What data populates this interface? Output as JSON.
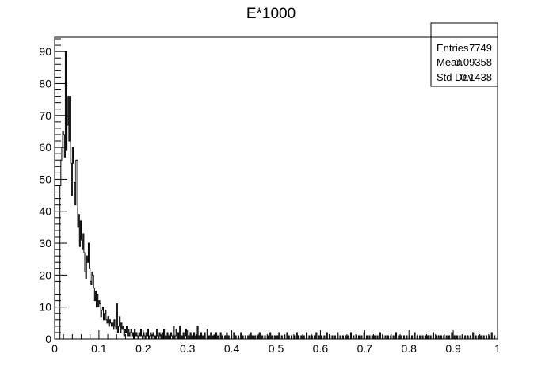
{
  "chart_data": {
    "type": "bar",
    "title": "E*1000",
    "xlabel": "",
    "ylabel": "",
    "xlim": [
      0,
      1
    ],
    "ylim": [
      0,
      94.5
    ],
    "x_ticks": [
      "0",
      "0.1",
      "0.2",
      "0.3",
      "0.4",
      "0.5",
      "0.6",
      "0.7",
      "0.8",
      "0.9",
      "1"
    ],
    "y_ticks": [
      "0",
      "10",
      "20",
      "30",
      "40",
      "50",
      "60",
      "70",
      "80",
      "90"
    ],
    "bin_width": 0.002,
    "values": [
      0,
      0,
      0,
      0,
      0,
      0,
      48,
      56,
      60,
      65,
      64,
      57,
      90,
      59,
      67,
      76,
      62,
      76,
      55,
      45,
      60,
      55,
      49,
      42,
      56,
      56,
      35,
      39,
      29,
      37,
      31,
      28,
      33,
      27,
      21,
      19,
      26,
      24,
      30,
      22,
      18,
      17,
      21,
      20,
      16,
      12,
      15,
      10,
      14,
      10,
      12,
      11,
      7,
      9,
      10,
      6,
      8,
      9,
      6,
      5,
      7,
      4,
      6,
      5,
      4,
      5,
      3,
      6,
      4,
      3,
      11,
      2,
      4,
      7,
      2,
      5,
      3,
      4,
      1,
      3,
      2,
      4,
      1,
      3,
      1,
      2,
      3,
      1,
      2,
      0,
      3,
      1,
      2,
      1,
      0,
      2,
      1,
      3,
      1,
      0,
      2,
      1,
      0,
      2,
      1,
      3,
      0,
      1,
      2,
      0,
      1,
      2,
      0,
      1,
      0,
      3,
      1,
      0,
      2,
      1,
      0,
      2,
      0,
      3,
      0,
      1,
      0,
      2,
      0,
      1,
      0,
      2,
      1,
      0,
      4,
      0,
      1,
      3,
      0,
      2,
      0,
      4,
      0,
      1,
      0,
      2,
      0,
      1,
      3,
      0,
      0,
      1,
      0,
      2,
      0,
      1,
      0,
      2,
      0,
      1,
      0,
      4,
      0,
      1,
      0,
      2,
      0,
      1,
      0,
      2,
      0,
      0,
      3,
      0,
      1,
      0,
      2,
      0,
      1,
      0,
      1,
      0,
      2,
      0,
      1,
      0,
      0,
      2,
      0,
      1,
      0,
      0,
      1,
      0,
      2,
      0,
      1,
      0,
      0,
      1,
      0,
      0,
      2,
      0,
      1,
      0,
      0,
      1,
      0,
      0,
      2,
      0,
      1,
      0,
      0,
      1,
      0,
      0,
      1,
      0,
      0,
      2,
      0,
      1,
      0,
      0,
      1,
      0,
      0,
      1,
      0,
      2,
      0,
      0,
      1,
      0,
      0,
      1,
      0,
      0,
      1,
      0,
      0,
      2,
      0,
      1,
      0,
      0,
      1,
      0,
      0,
      1,
      0,
      2,
      0,
      0,
      1,
      0,
      0,
      1,
      0,
      0,
      2,
      0,
      1,
      0,
      0,
      1,
      0,
      0,
      1,
      0,
      0,
      2,
      0,
      1,
      0,
      0,
      1,
      0,
      0,
      1,
      0,
      0,
      2,
      0,
      0,
      1,
      0,
      0,
      1,
      0,
      0,
      1,
      0,
      2,
      0,
      0,
      1,
      0,
      0,
      1,
      0,
      0,
      1,
      0,
      0,
      2,
      0,
      0,
      1,
      0,
      0,
      1,
      0,
      0,
      1,
      0,
      0,
      2,
      0,
      0,
      1,
      0,
      0,
      1,
      0,
      0,
      1,
      0,
      0,
      1,
      0,
      0,
      2,
      0,
      0,
      1,
      0,
      0,
      1,
      0,
      0,
      1,
      0,
      0,
      1,
      0,
      0,
      2,
      0,
      0,
      1,
      0,
      0,
      1,
      0,
      0,
      1,
      0,
      0,
      1,
      0,
      0,
      1,
      0,
      0,
      2,
      0,
      0,
      1,
      0,
      0,
      1,
      0,
      0,
      1,
      0,
      0,
      1,
      0,
      0,
      1,
      0,
      0,
      2,
      0,
      0,
      1,
      0,
      0,
      1,
      0,
      0,
      1,
      0,
      0,
      1,
      0,
      0,
      1,
      0,
      0,
      1,
      0,
      0,
      2,
      0,
      0,
      1,
      0,
      0,
      1,
      0,
      0,
      1,
      0,
      0,
      1,
      0,
      0,
      1,
      0,
      0,
      1,
      0,
      0,
      2,
      0,
      0,
      1,
      0,
      0,
      1,
      0,
      0,
      1,
      0,
      0,
      1,
      0,
      0,
      1,
      0,
      0,
      1,
      0,
      0,
      2,
      0,
      0,
      1,
      0,
      0,
      1,
      0,
      0,
      1,
      0,
      0,
      1,
      0,
      0,
      1,
      0,
      0,
      1,
      0,
      0,
      1,
      0,
      0,
      2,
      0,
      0,
      1,
      0,
      0,
      1,
      0,
      0,
      1,
      0,
      0,
      1,
      0,
      0,
      1,
      0,
      0,
      1,
      0,
      0,
      2,
      0,
      0,
      1,
      0,
      0,
      0
    ],
    "stats": [
      {
        "label": "Entries",
        "value": "7749"
      },
      {
        "label": "Mean",
        "value": "0.09358"
      },
      {
        "label": "Std Dev",
        "value": "0.1438"
      }
    ],
    "grid": false,
    "legend": "top-right stats box",
    "colors": {
      "line": "#000000",
      "background": "#ffffff"
    }
  }
}
